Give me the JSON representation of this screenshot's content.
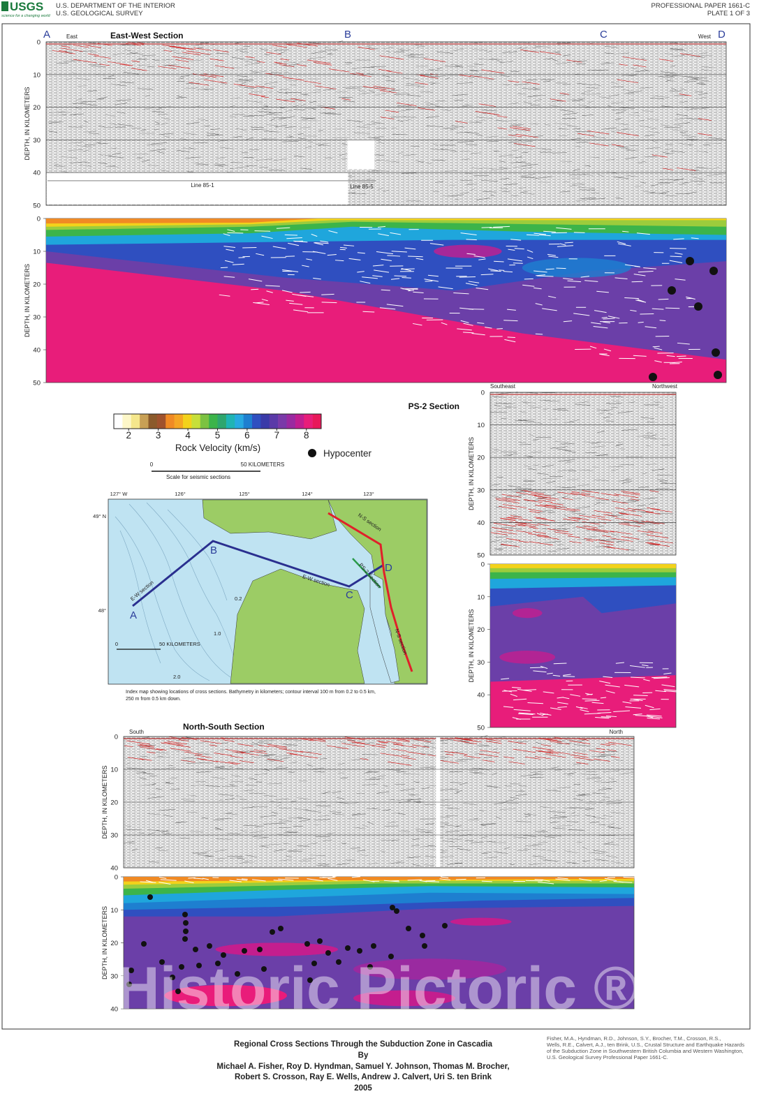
{
  "header": {
    "logo": "USGS",
    "logo_tagline": "science for a changing world",
    "agency": "U.S. DEPARTMENT OF THE INTERIOR",
    "bureau": "U.S. GEOLOGICAL SURVEY",
    "paper": "PROFESSIONAL PAPER 1661-C",
    "plate": "PLATE 1 OF 3"
  },
  "east_west": {
    "title": "East-West Section",
    "markers": [
      "A",
      "B",
      "C",
      "D"
    ],
    "left_label": "East",
    "right_label": "West",
    "lines": [
      "Line 85-1",
      "Line 85-5"
    ]
  },
  "ps2": {
    "title": "PS-2 Section",
    "left_label": "Southeast",
    "right_label": "Northwest"
  },
  "north_south": {
    "title": "North-South Section",
    "left_label": "South",
    "right_label": "North"
  },
  "panels": [
    {
      "axis_label": "DEPTH, IN KILOMETERS",
      "ticks": [
        0,
        10,
        20,
        30,
        40,
        50
      ]
    },
    {
      "axis_label": "DEPTH, IN KILOMETERS",
      "ticks": [
        0,
        10,
        20,
        30,
        40,
        50
      ]
    },
    {
      "axis_label": "DEPTH, IN KILOMETERS",
      "ticks": [
        0,
        10,
        20,
        30,
        40,
        50
      ]
    },
    {
      "axis_label": "DEPTH, IN KILOMETERS",
      "ticks": [
        0,
        10,
        20,
        30,
        40,
        50
      ]
    },
    {
      "axis_label": "DEPTH, IN KILOMETERS",
      "ticks": [
        0,
        10,
        20,
        30,
        40
      ]
    },
    {
      "axis_label": "DEPTH, IN KILOMETERS",
      "ticks": [
        0,
        10,
        20,
        30,
        40
      ]
    }
  ],
  "legend": {
    "ticks": [
      2,
      3,
      4,
      5,
      6,
      7,
      8
    ],
    "label": "Rock Velocity (km/s)",
    "colors": [
      "#ffffff",
      "#fdf7c8",
      "#f5e78c",
      "#c8a055",
      "#8b5a2b",
      "#a0522d",
      "#f08a24",
      "#f5a623",
      "#f3d21b",
      "#c7df3a",
      "#7cc242",
      "#3cb44a",
      "#2ea66e",
      "#1fb4b4",
      "#27a9e1",
      "#1e7fd0",
      "#2f4fc0",
      "#3a3aa8",
      "#5a3aa8",
      "#7a3aa8",
      "#9a2aa0",
      "#c01e90",
      "#e81d7a",
      "#e8185a"
    ],
    "hypocenter": "Hypocenter",
    "scale_start": 0,
    "scale_end": "50 KILOMETERS",
    "scale_caption": "Scale for seismic sections"
  },
  "map": {
    "longitudes": [
      "127° W",
      "126°",
      "125°",
      "124°",
      "123°"
    ],
    "latitudes": [
      "49° N",
      "48°"
    ],
    "points": [
      "A",
      "B",
      "C",
      "D"
    ],
    "ew_label": "E-W section",
    "ns_label": "N-S section",
    "ns_label_2": "N-S section",
    "ps2_label": "PS-2 Section",
    "contours": [
      "0.2",
      "1.0",
      "2.0"
    ],
    "scale_start": "0",
    "scale_end": "50 KILOMETERS",
    "caption": [
      "Index map showing locations of cross sections. Bathymetry in kilometers; contour interval 100 m from 0.2 to 0.5 km,",
      "250 m from 0.5 km down."
    ]
  },
  "title_block": {
    "title": "Regional Cross Sections Through the Subduction Zone in Cascadia",
    "by": "By",
    "authors": [
      "Michael A. Fisher, Roy D. Hyndman, Samuel Y. Johnson, Thomas M. Brocher,",
      "Robert S. Crosson, Ray E. Wells, Andrew J. Calvert, Uri S. ten Brink"
    ],
    "year": 2005
  },
  "citation": [
    "Fisher, M.A., Hyndman, R.D., Johnson, S.Y., Brocher, T.M., Crosson, R.S.,",
    "Wells, R.E., Calvert, A.J., ten Brink, U.S., Crustal Structure and Earthquake Hazards",
    "of the Subduction Zone in Southwestern British Columbia and Western Washington,",
    "U.S. Geological Survey Professional Paper 1661-C."
  ],
  "watermark": "Historic Pictoric ®"
}
